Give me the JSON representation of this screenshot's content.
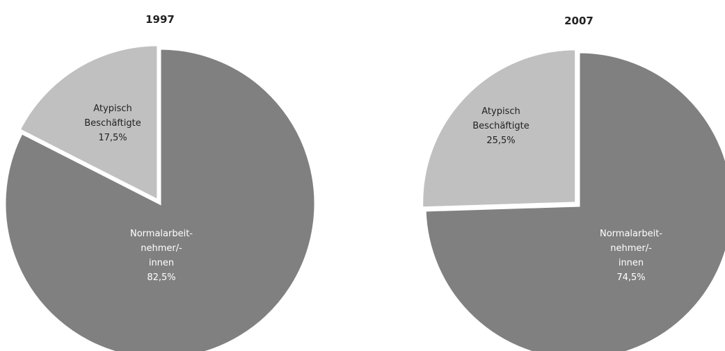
{
  "chart_data": [
    {
      "type": "pie",
      "title": "1997",
      "slices": [
        {
          "label_lines": [
            "Normalarbeit-",
            "nehmer/-",
            "innen"
          ],
          "value": 82.5,
          "value_text": "82,5%",
          "color": "#808080",
          "text_color": "#ffffff"
        },
        {
          "label_lines": [
            "Atypisch",
            "Beschäftigte"
          ],
          "value": 17.5,
          "value_text": "17,5%",
          "color": "#c0c0c0",
          "text_color": "#222222"
        }
      ]
    },
    {
      "type": "pie",
      "title": "2007",
      "slices": [
        {
          "label_lines": [
            "Normalarbeit-",
            "nehmer/-",
            "innen"
          ],
          "value": 74.5,
          "value_text": "74,5%",
          "color": "#808080",
          "text_color": "#ffffff"
        },
        {
          "label_lines": [
            "Atypisch",
            "Beschäftigte"
          ],
          "value": 25.5,
          "value_text": "25,5%",
          "color": "#c0c0c0",
          "text_color": "#222222"
        }
      ]
    }
  ]
}
